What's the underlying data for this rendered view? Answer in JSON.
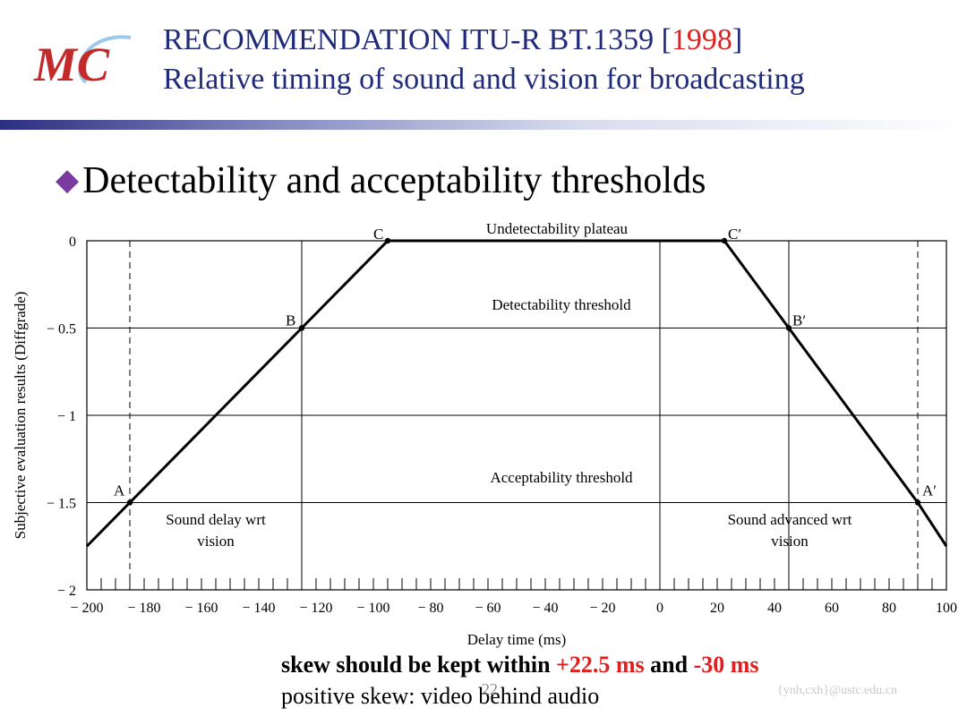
{
  "header": {
    "logo_text": "MC",
    "title_line1_prefix": "RECOMMENDATION ITU-R BT.1359 [",
    "title_year": "1998",
    "title_line1_suffix": "]",
    "title_line2": "Relative timing of sound and vision for broadcasting"
  },
  "bullet": "Detectability and acceptability thresholds",
  "chart_data": {
    "type": "line",
    "xlabel": "Delay time (ms)",
    "ylabel": "Subjective evaluation results (Diffgrade)",
    "xlim": [
      -200,
      100
    ],
    "ylim": [
      -2,
      0
    ],
    "x_ticks": [
      -200,
      -180,
      -160,
      -140,
      -120,
      -100,
      -80,
      -60,
      -40,
      -20,
      0,
      20,
      40,
      60,
      80,
      100
    ],
    "x_tick_labels": [
      "− 200",
      "− 180",
      "− 160",
      "− 140",
      "− 120",
      "− 100",
      "− 80",
      "− 60",
      "− 40",
      "− 20",
      "0",
      "20",
      "40",
      "60",
      "80",
      "100"
    ],
    "y_ticks": [
      0,
      -0.5,
      -1,
      -1.5,
      -2
    ],
    "y_tick_labels": [
      "0",
      "− 0.5",
      "− 1",
      "− 1.5",
      "− 2"
    ],
    "series": [
      {
        "x": [
          -200,
          -185,
          -125,
          -95,
          22.5,
          45,
          90,
          100
        ],
        "y": [
          -1.75,
          -1.5,
          -0.5,
          0,
          0,
          -0.5,
          -1.5,
          -1.75
        ]
      }
    ],
    "points": [
      {
        "label": "A",
        "x": -185,
        "y": -1.5
      },
      {
        "label": "B",
        "x": -125,
        "y": -0.5
      },
      {
        "label": "C",
        "x": -95,
        "y": 0
      },
      {
        "label": "C′",
        "x": 22.5,
        "y": 0
      },
      {
        "label": "B′",
        "x": 45,
        "y": -0.5
      },
      {
        "label": "A′",
        "x": 90,
        "y": -1.5
      }
    ],
    "gridlines_y": [
      -0.5,
      -1,
      -1.5
    ],
    "solid_verticals_x": [
      -125,
      0,
      45
    ],
    "dashed_verticals_x": [
      -185,
      90
    ],
    "annotations": {
      "plateau": "Undetectability plateau",
      "detect": "Detectability threshold",
      "accept": "Acceptability threshold",
      "delay_line1": "Sound delay wrt",
      "delay_line2": "vision",
      "advanced_line1": "Sound advanced wrt",
      "advanced_line2": "vision"
    }
  },
  "notes": {
    "line1_a": "skew should be kept within ",
    "line1_v1": "+22.5 ms",
    "line1_b": " and ",
    "line1_v2": "-30 ms",
    "line2": "positive skew: video behind audio"
  },
  "page_number": "22",
  "footer": "{ynh,cxh}@ustc.edu.cn",
  "colors": {
    "title": "#1f2a7a",
    "accent_red": "#e02020",
    "bullet": "#7a3aa0"
  }
}
